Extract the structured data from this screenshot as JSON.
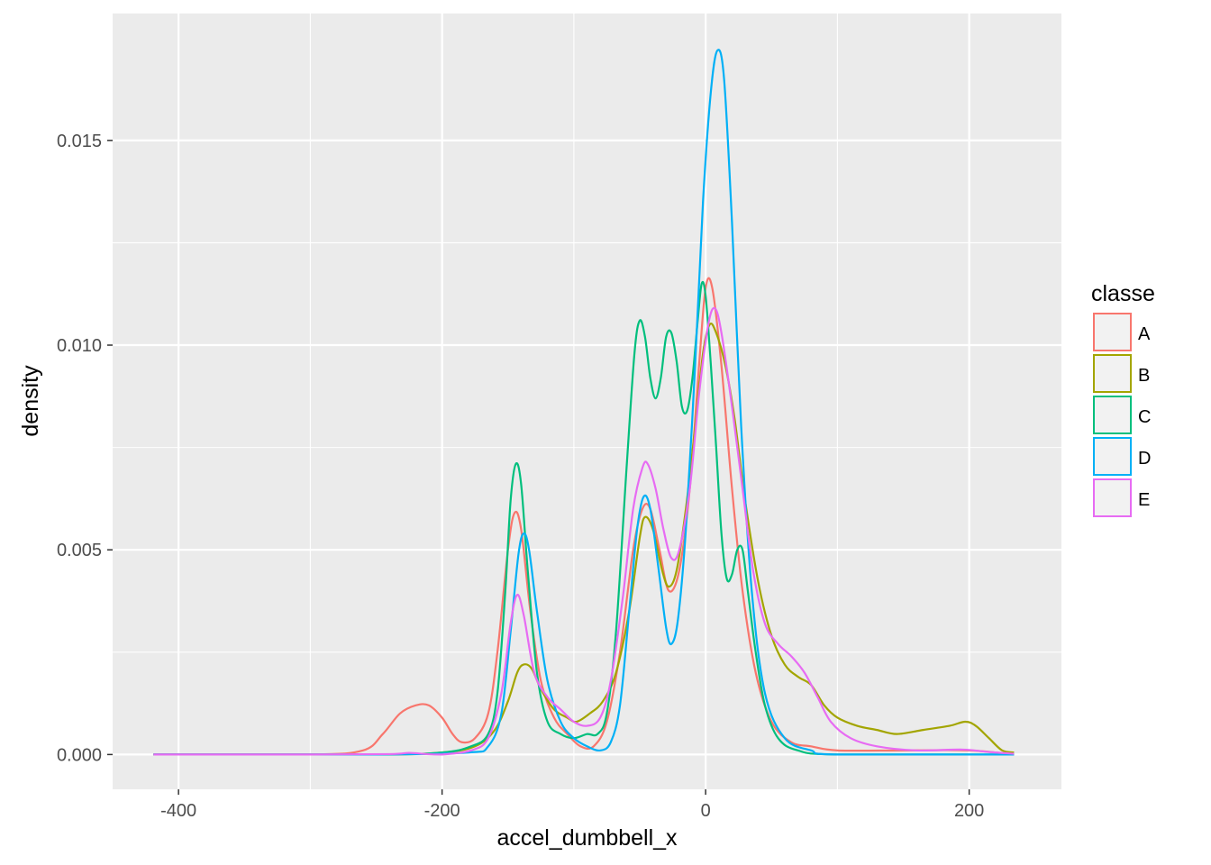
{
  "chart_data": {
    "type": "line",
    "subtype": "density",
    "xlabel": "accel_dumbbell_x",
    "ylabel": "density",
    "xlim": [
      -450,
      270
    ],
    "ylim": [
      -0.00085,
      0.0181
    ],
    "x_ticks": [
      -400,
      -200,
      0,
      200
    ],
    "x_tick_labels": [
      "-400",
      "-200",
      "0",
      "200"
    ],
    "y_ticks": [
      0.0,
      0.005,
      0.01,
      0.015
    ],
    "y_tick_labels": [
      "0.000",
      "0.005",
      "0.010",
      "0.015"
    ],
    "grid": true,
    "legend": {
      "title": "classe",
      "position": "right",
      "entries": [
        "A",
        "B",
        "C",
        "D",
        "E"
      ]
    },
    "series": [
      {
        "name": "A",
        "color": "#F8766D",
        "points": [
          [
            -419,
            0
          ],
          [
            -300,
            0
          ],
          [
            -260,
            0.0001
          ],
          [
            -245,
            0.0005
          ],
          [
            -232,
            0.001
          ],
          [
            -220,
            0.0012
          ],
          [
            -210,
            0.0012
          ],
          [
            -200,
            0.0009
          ],
          [
            -192,
            0.0005
          ],
          [
            -185,
            0.0003
          ],
          [
            -175,
            0.0004
          ],
          [
            -165,
            0.001
          ],
          [
            -158,
            0.0025
          ],
          [
            -150,
            0.005
          ],
          [
            -145,
            0.0059
          ],
          [
            -140,
            0.0055
          ],
          [
            -133,
            0.0035
          ],
          [
            -125,
            0.0018
          ],
          [
            -115,
            0.0009
          ],
          [
            -105,
            0.0005
          ],
          [
            -95,
            0.0002
          ],
          [
            -85,
            0.0002
          ],
          [
            -75,
            0.0008
          ],
          [
            -65,
            0.0025
          ],
          [
            -55,
            0.005
          ],
          [
            -48,
            0.006
          ],
          [
            -42,
            0.006
          ],
          [
            -35,
            0.005
          ],
          [
            -28,
            0.004
          ],
          [
            -20,
            0.0045
          ],
          [
            -12,
            0.0065
          ],
          [
            -5,
            0.0095
          ],
          [
            0,
            0.0114
          ],
          [
            5,
            0.0114
          ],
          [
            12,
            0.0095
          ],
          [
            20,
            0.0065
          ],
          [
            28,
            0.004
          ],
          [
            38,
            0.002
          ],
          [
            50,
            0.0008
          ],
          [
            65,
            0.0003
          ],
          [
            80,
            0.0002
          ],
          [
            100,
            0.0001
          ],
          [
            150,
            0.0001
          ],
          [
            200,
            0.0001
          ],
          [
            234,
            0
          ]
        ]
      },
      {
        "name": "B",
        "color": "#A3A500",
        "points": [
          [
            -419,
            0
          ],
          [
            -250,
            0
          ],
          [
            -200,
            5e-05
          ],
          [
            -175,
            0.0002
          ],
          [
            -160,
            0.0006
          ],
          [
            -150,
            0.0013
          ],
          [
            -143,
            0.002
          ],
          [
            -138,
            0.0022
          ],
          [
            -132,
            0.0021
          ],
          [
            -125,
            0.0016
          ],
          [
            -115,
            0.0011
          ],
          [
            -105,
            0.0009
          ],
          [
            -98,
            0.0008
          ],
          [
            -88,
            0.001
          ],
          [
            -78,
            0.0013
          ],
          [
            -68,
            0.002
          ],
          [
            -58,
            0.0035
          ],
          [
            -50,
            0.0053
          ],
          [
            -46,
            0.0058
          ],
          [
            -40,
            0.0055
          ],
          [
            -33,
            0.0045
          ],
          [
            -28,
            0.0041
          ],
          [
            -22,
            0.0045
          ],
          [
            -15,
            0.006
          ],
          [
            -8,
            0.008
          ],
          [
            -2,
            0.0098
          ],
          [
            3,
            0.0105
          ],
          [
            8,
            0.0103
          ],
          [
            15,
            0.0095
          ],
          [
            22,
            0.0082
          ],
          [
            30,
            0.0062
          ],
          [
            40,
            0.0042
          ],
          [
            50,
            0.0029
          ],
          [
            60,
            0.0022
          ],
          [
            70,
            0.0019
          ],
          [
            80,
            0.0017
          ],
          [
            90,
            0.0012
          ],
          [
            100,
            0.0009
          ],
          [
            115,
            0.0007
          ],
          [
            130,
            0.0006
          ],
          [
            145,
            0.0005
          ],
          [
            165,
            0.0006
          ],
          [
            185,
            0.0007
          ],
          [
            197,
            0.0008
          ],
          [
            205,
            0.0007
          ],
          [
            215,
            0.0004
          ],
          [
            225,
            0.0001
          ],
          [
            234,
            5e-05
          ]
        ]
      },
      {
        "name": "C",
        "color": "#00BF7D",
        "points": [
          [
            -419,
            0
          ],
          [
            -250,
            0
          ],
          [
            -200,
            5e-05
          ],
          [
            -178,
            0.0002
          ],
          [
            -165,
            0.0005
          ],
          [
            -158,
            0.0015
          ],
          [
            -152,
            0.004
          ],
          [
            -148,
            0.0062
          ],
          [
            -144,
            0.0071
          ],
          [
            -140,
            0.0066
          ],
          [
            -135,
            0.0045
          ],
          [
            -128,
            0.002
          ],
          [
            -120,
            0.0008
          ],
          [
            -110,
            0.0005
          ],
          [
            -100,
            0.0004
          ],
          [
            -90,
            0.0005
          ],
          [
            -82,
            0.0005
          ],
          [
            -75,
            0.001
          ],
          [
            -68,
            0.003
          ],
          [
            -60,
            0.007
          ],
          [
            -54,
            0.0098
          ],
          [
            -50,
            0.0106
          ],
          [
            -46,
            0.0102
          ],
          [
            -42,
            0.0092
          ],
          [
            -38,
            0.0087
          ],
          [
            -34,
            0.0092
          ],
          [
            -30,
            0.0102
          ],
          [
            -26,
            0.0103
          ],
          [
            -22,
            0.0096
          ],
          [
            -18,
            0.0085
          ],
          [
            -14,
            0.0084
          ],
          [
            -10,
            0.0092
          ],
          [
            -6,
            0.0106
          ],
          [
            -3,
            0.0115
          ],
          [
            0,
            0.0112
          ],
          [
            4,
            0.0095
          ],
          [
            8,
            0.0075
          ],
          [
            12,
            0.0054
          ],
          [
            16,
            0.0043
          ],
          [
            20,
            0.0044
          ],
          [
            24,
            0.005
          ],
          [
            28,
            0.005
          ],
          [
            32,
            0.004
          ],
          [
            38,
            0.0025
          ],
          [
            45,
            0.0012
          ],
          [
            55,
            0.0004
          ],
          [
            70,
            0.0001
          ],
          [
            100,
            0
          ],
          [
            234,
            0
          ]
        ]
      },
      {
        "name": "D",
        "color": "#00B0F6",
        "points": [
          [
            -419,
            0
          ],
          [
            -250,
            0
          ],
          [
            -180,
            5e-05
          ],
          [
            -165,
            0.0002
          ],
          [
            -155,
            0.001
          ],
          [
            -148,
            0.003
          ],
          [
            -142,
            0.0049
          ],
          [
            -138,
            0.0054
          ],
          [
            -134,
            0.005
          ],
          [
            -128,
            0.0035
          ],
          [
            -120,
            0.0018
          ],
          [
            -110,
            0.0008
          ],
          [
            -100,
            0.0004
          ],
          [
            -90,
            0.0002
          ],
          [
            -80,
            0.0001
          ],
          [
            -72,
            0.0003
          ],
          [
            -65,
            0.0012
          ],
          [
            -58,
            0.0035
          ],
          [
            -52,
            0.0055
          ],
          [
            -47,
            0.0063
          ],
          [
            -42,
            0.006
          ],
          [
            -36,
            0.0046
          ],
          [
            -30,
            0.0031
          ],
          [
            -26,
            0.0027
          ],
          [
            -21,
            0.0033
          ],
          [
            -15,
            0.0055
          ],
          [
            -8,
            0.0095
          ],
          [
            -2,
            0.0135
          ],
          [
            4,
            0.0162
          ],
          [
            9,
            0.0172
          ],
          [
            14,
            0.0165
          ],
          [
            20,
            0.013
          ],
          [
            27,
            0.008
          ],
          [
            35,
            0.004
          ],
          [
            45,
            0.0015
          ],
          [
            60,
            0.0004
          ],
          [
            80,
            0.0001
          ],
          [
            100,
            0
          ],
          [
            234,
            0
          ]
        ]
      },
      {
        "name": "E",
        "color": "#E76BF3",
        "points": [
          [
            -419,
            0
          ],
          [
            -300,
            0
          ],
          [
            -240,
            1e-05
          ],
          [
            -225,
            4e-05
          ],
          [
            -212,
            1e-05
          ],
          [
            -200,
            0
          ],
          [
            -178,
            0.0001
          ],
          [
            -165,
            0.0004
          ],
          [
            -155,
            0.0015
          ],
          [
            -148,
            0.0032
          ],
          [
            -143,
            0.0039
          ],
          [
            -138,
            0.0034
          ],
          [
            -130,
            0.002
          ],
          [
            -120,
            0.0014
          ],
          [
            -110,
            0.0011
          ],
          [
            -100,
            0.0008
          ],
          [
            -90,
            0.0007
          ],
          [
            -80,
            0.0009
          ],
          [
            -72,
            0.0018
          ],
          [
            -63,
            0.0038
          ],
          [
            -55,
            0.006
          ],
          [
            -48,
            0.007
          ],
          [
            -44,
            0.0071
          ],
          [
            -38,
            0.0065
          ],
          [
            -32,
            0.0055
          ],
          [
            -26,
            0.0048
          ],
          [
            -20,
            0.005
          ],
          [
            -12,
            0.0065
          ],
          [
            -5,
            0.0088
          ],
          [
            2,
            0.0105
          ],
          [
            7,
            0.0109
          ],
          [
            12,
            0.0103
          ],
          [
            20,
            0.0085
          ],
          [
            28,
            0.0065
          ],
          [
            36,
            0.0045
          ],
          [
            45,
            0.0032
          ],
          [
            55,
            0.0027
          ],
          [
            65,
            0.0024
          ],
          [
            75,
            0.002
          ],
          [
            85,
            0.0014
          ],
          [
            95,
            0.0008
          ],
          [
            110,
            0.0004
          ],
          [
            130,
            0.0002
          ],
          [
            160,
            0.0001
          ],
          [
            195,
            0.00012
          ],
          [
            215,
            6e-05
          ],
          [
            234,
            2e-05
          ]
        ]
      }
    ]
  }
}
